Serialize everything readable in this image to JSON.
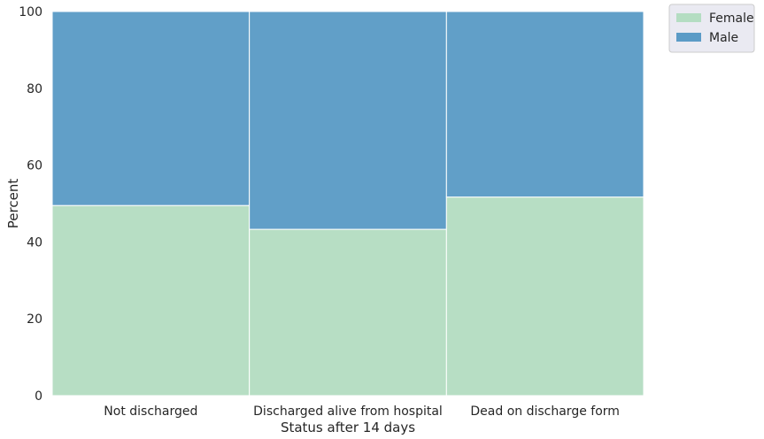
{
  "chart_data": {
    "type": "bar",
    "stacked": true,
    "normalized_percent": true,
    "categories": [
      "Not discharged",
      "Discharged alive from hospital",
      "Dead on discharge form"
    ],
    "series": [
      {
        "name": "Female",
        "values": [
          49.5,
          43.3,
          51.7
        ],
        "color": "#b4ddc2"
      },
      {
        "name": "Male",
        "values": [
          50.5,
          56.7,
          48.3
        ],
        "color": "#5b9bc6"
      }
    ],
    "xlabel": "Status after 14 days",
    "ylabel": "Percent",
    "ylim": [
      0,
      100
    ],
    "yticks": [
      0,
      20,
      40,
      60,
      80,
      100
    ],
    "grid": true,
    "legend_position": "outside-top-right",
    "background": "#eaeaf2"
  }
}
